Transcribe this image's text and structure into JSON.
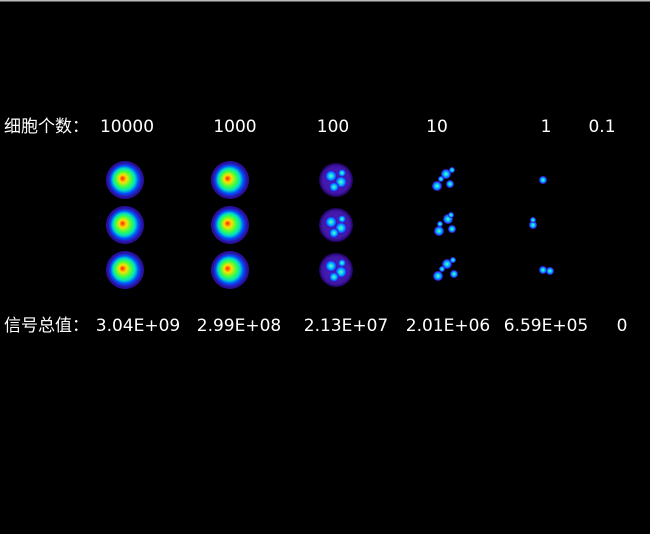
{
  "row_labels": {
    "cells": "细胞个数：",
    "signal": "信号总值："
  },
  "columns": [
    {
      "cells": "10000",
      "signal": "3.04E+09"
    },
    {
      "cells": "1000",
      "signal": "2.99E+08"
    },
    {
      "cells": "100",
      "signal": "2.13E+07"
    },
    {
      "cells": "10",
      "signal": "2.01E+06"
    },
    {
      "cells": "1",
      "signal": "6.59E+05"
    },
    {
      "cells": "0.1",
      "signal": "0"
    }
  ]
}
